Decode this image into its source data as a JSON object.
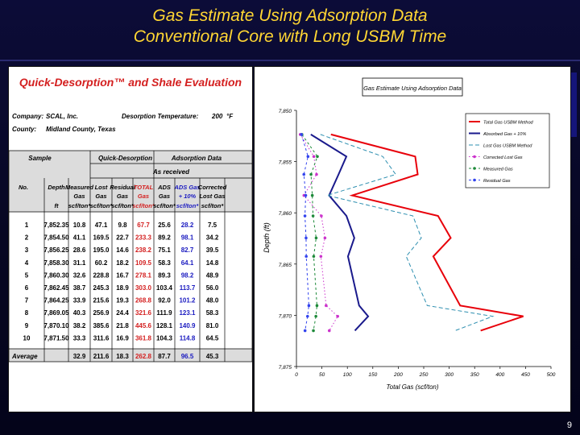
{
  "slide": {
    "title_line1": "Gas Estimate Using Adsorption Data",
    "title_line2": "Conventional Core with Long USBM Time",
    "page_number": "9"
  },
  "table": {
    "title": "Quick-Desorption™ and Shale Evaluation",
    "company_label": "Company:",
    "company": "SCAL, Inc.",
    "county_label": "County:",
    "county": "Midland County, Texas",
    "temp_label": "Desorption Temperature:",
    "temp_value": "200",
    "temp_unit": "°F",
    "group_sample": "Sample",
    "group_quick": "Quick-Desorption",
    "group_ads": "Adsorption Data",
    "as_received": "As received",
    "col_no": "No.",
    "col_depth": "Depth",
    "col_depth_unit": "ft",
    "col_measured_1": "Measured",
    "col_measured_2": "Gas",
    "col_lost_1": "Lost",
    "col_lost_2": "Gas",
    "col_resid_1": "Residual",
    "col_resid_2": "Gas",
    "col_total_1": "TOTAL",
    "col_total_2": "Gas",
    "col_ads_1": "ADS",
    "col_ads_2": "Gas",
    "col_adsg_1": "ADS Gas",
    "col_adsg_2": "+ 10%",
    "col_corr_1": "Corrected",
    "col_corr_2": "Lost Gas",
    "unit": "scf/ton*",
    "rows": [
      [
        "1",
        "7,852.35",
        "10.8",
        "47.1",
        "9.8",
        "67.7",
        "25.6",
        "28.2",
        "7.5"
      ],
      [
        "2",
        "7,854.50",
        "41.1",
        "169.5",
        "22.7",
        "233.3",
        "89.2",
        "98.1",
        "34.2"
      ],
      [
        "3",
        "7,856.25",
        "28.6",
        "195.0",
        "14.6",
        "238.2",
        "75.1",
        "82.7",
        "39.5"
      ],
      [
        "4",
        "7,858.30",
        "31.1",
        "60.2",
        "18.2",
        "109.5",
        "58.3",
        "64.1",
        "14.8"
      ],
      [
        "5",
        "7,860.30",
        "32.6",
        "228.8",
        "16.7",
        "278.1",
        "89.3",
        "98.2",
        "48.9"
      ],
      [
        "6",
        "7,862.45",
        "38.7",
        "245.3",
        "18.9",
        "303.0",
        "103.4",
        "113.7",
        "56.0"
      ],
      [
        "7",
        "7,864.25",
        "33.9",
        "215.6",
        "19.3",
        "268.8",
        "92.0",
        "101.2",
        "48.0"
      ],
      [
        "8",
        "7,869.05",
        "40.3",
        "256.9",
        "24.4",
        "321.6",
        "111.9",
        "123.1",
        "58.3"
      ],
      [
        "9",
        "7,870.10",
        "38.2",
        "385.6",
        "21.8",
        "445.6",
        "128.1",
        "140.9",
        "81.0"
      ],
      [
        "10",
        "7,871.50",
        "33.3",
        "311.6",
        "16.9",
        "361.8",
        "104.3",
        "114.8",
        "64.5"
      ]
    ],
    "average_label": "Average",
    "average": [
      "32.9",
      "211.6",
      "18.3",
      "262.8",
      "87.7",
      "96.5",
      "45.3"
    ]
  },
  "colors": {
    "total": "#e8000a",
    "ads": "#1a1a8c",
    "lost": "#2e8fb0",
    "corrected": "#cc33cc",
    "measured": "#1e8a3a",
    "residual": "#3344ee",
    "table_header_bg": "#dcdcdc"
  },
  "chart_data": {
    "type": "line",
    "title": "Gas Estimate Using Adsorption Data",
    "xlabel": "Total Gas (scf/ton)",
    "ylabel": "Depth (ft)",
    "xlim": [
      0,
      500
    ],
    "ylim": [
      7850,
      7875
    ],
    "y_inverted": true,
    "xticks": [
      "0",
      "50",
      "100",
      "150",
      "200",
      "250",
      "300",
      "350",
      "400",
      "450",
      "500"
    ],
    "yticks": [
      "7,850",
      "7,855",
      "7,860",
      "7,865",
      "7,870",
      "7,875"
    ],
    "legend_position": "top-right",
    "series": [
      {
        "name": "Total Gas USBM Method",
        "style": "solid",
        "color": "#e8000a",
        "x": [
          67.7,
          233.3,
          238.2,
          109.5,
          278.1,
          303.0,
          268.8,
          321.6,
          445.6,
          361.8
        ],
        "y": [
          7852.35,
          7854.5,
          7856.25,
          7858.3,
          7860.3,
          7862.45,
          7864.25,
          7869.05,
          7870.1,
          7871.5
        ]
      },
      {
        "name": "Absorbed Gas + 10%",
        "style": "solid",
        "color": "#1a1a8c",
        "x": [
          28.2,
          98.1,
          82.7,
          64.1,
          98.2,
          113.7,
          101.2,
          123.1,
          140.9,
          114.8
        ],
        "y": [
          7852.35,
          7854.5,
          7856.25,
          7858.3,
          7860.3,
          7862.45,
          7864.25,
          7869.05,
          7870.1,
          7871.5
        ]
      },
      {
        "name": "Lost Gas USBM Method",
        "style": "dash",
        "color": "#2e8fb0",
        "x": [
          47.1,
          169.5,
          195.0,
          60.2,
          228.8,
          245.3,
          215.6,
          256.9,
          385.6,
          311.6
        ],
        "y": [
          7852.35,
          7854.5,
          7856.25,
          7858.3,
          7860.3,
          7862.45,
          7864.25,
          7869.05,
          7870.1,
          7871.5
        ]
      },
      {
        "name": "Corrected Lost Gas",
        "style": "dotted-marker",
        "color": "#cc33cc",
        "x": [
          7.5,
          34.2,
          39.5,
          14.8,
          48.9,
          56.0,
          48.0,
          58.3,
          81.0,
          64.5
        ],
        "y": [
          7852.35,
          7854.5,
          7856.25,
          7858.3,
          7860.3,
          7862.45,
          7864.25,
          7869.05,
          7870.1,
          7871.5
        ]
      },
      {
        "name": "Measured Gas",
        "style": "dash-marker",
        "color": "#1e8a3a",
        "x": [
          10.8,
          41.1,
          28.6,
          31.1,
          32.6,
          38.7,
          33.9,
          40.3,
          38.2,
          33.3
        ],
        "y": [
          7852.35,
          7854.5,
          7856.25,
          7858.3,
          7860.3,
          7862.45,
          7864.25,
          7869.05,
          7870.1,
          7871.5
        ]
      },
      {
        "name": "Residual Gas",
        "style": "dash-marker",
        "color": "#3344ee",
        "x": [
          9.8,
          22.7,
          14.6,
          18.2,
          16.7,
          18.9,
          19.3,
          24.4,
          21.8,
          16.9
        ],
        "y": [
          7852.35,
          7854.5,
          7856.25,
          7858.3,
          7860.3,
          7862.45,
          7864.25,
          7869.05,
          7870.1,
          7871.5
        ]
      }
    ]
  }
}
